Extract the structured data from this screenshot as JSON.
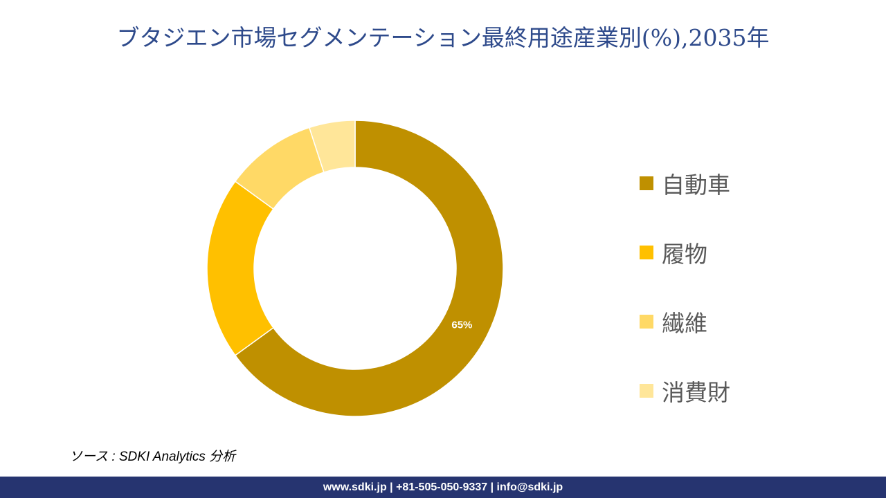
{
  "chart_data": {
    "type": "pie",
    "variant": "donut",
    "title": "ブタジエン市場セグメンテーション最終用途産業別(%),2035年",
    "categories": [
      "自動車",
      "履物",
      "繊維",
      "消費財"
    ],
    "values": [
      65,
      20,
      10,
      5
    ],
    "colors": [
      "#BF9000",
      "#FFC000",
      "#FFD966",
      "#FFE699"
    ],
    "data_labels": [
      "65%",
      "",
      "",
      ""
    ],
    "legend_position": "right"
  },
  "source": "ソース : SDKI Analytics  分析",
  "footer": "www.sdki.jp | +81-505-050-9337 | info@sdki.jp"
}
